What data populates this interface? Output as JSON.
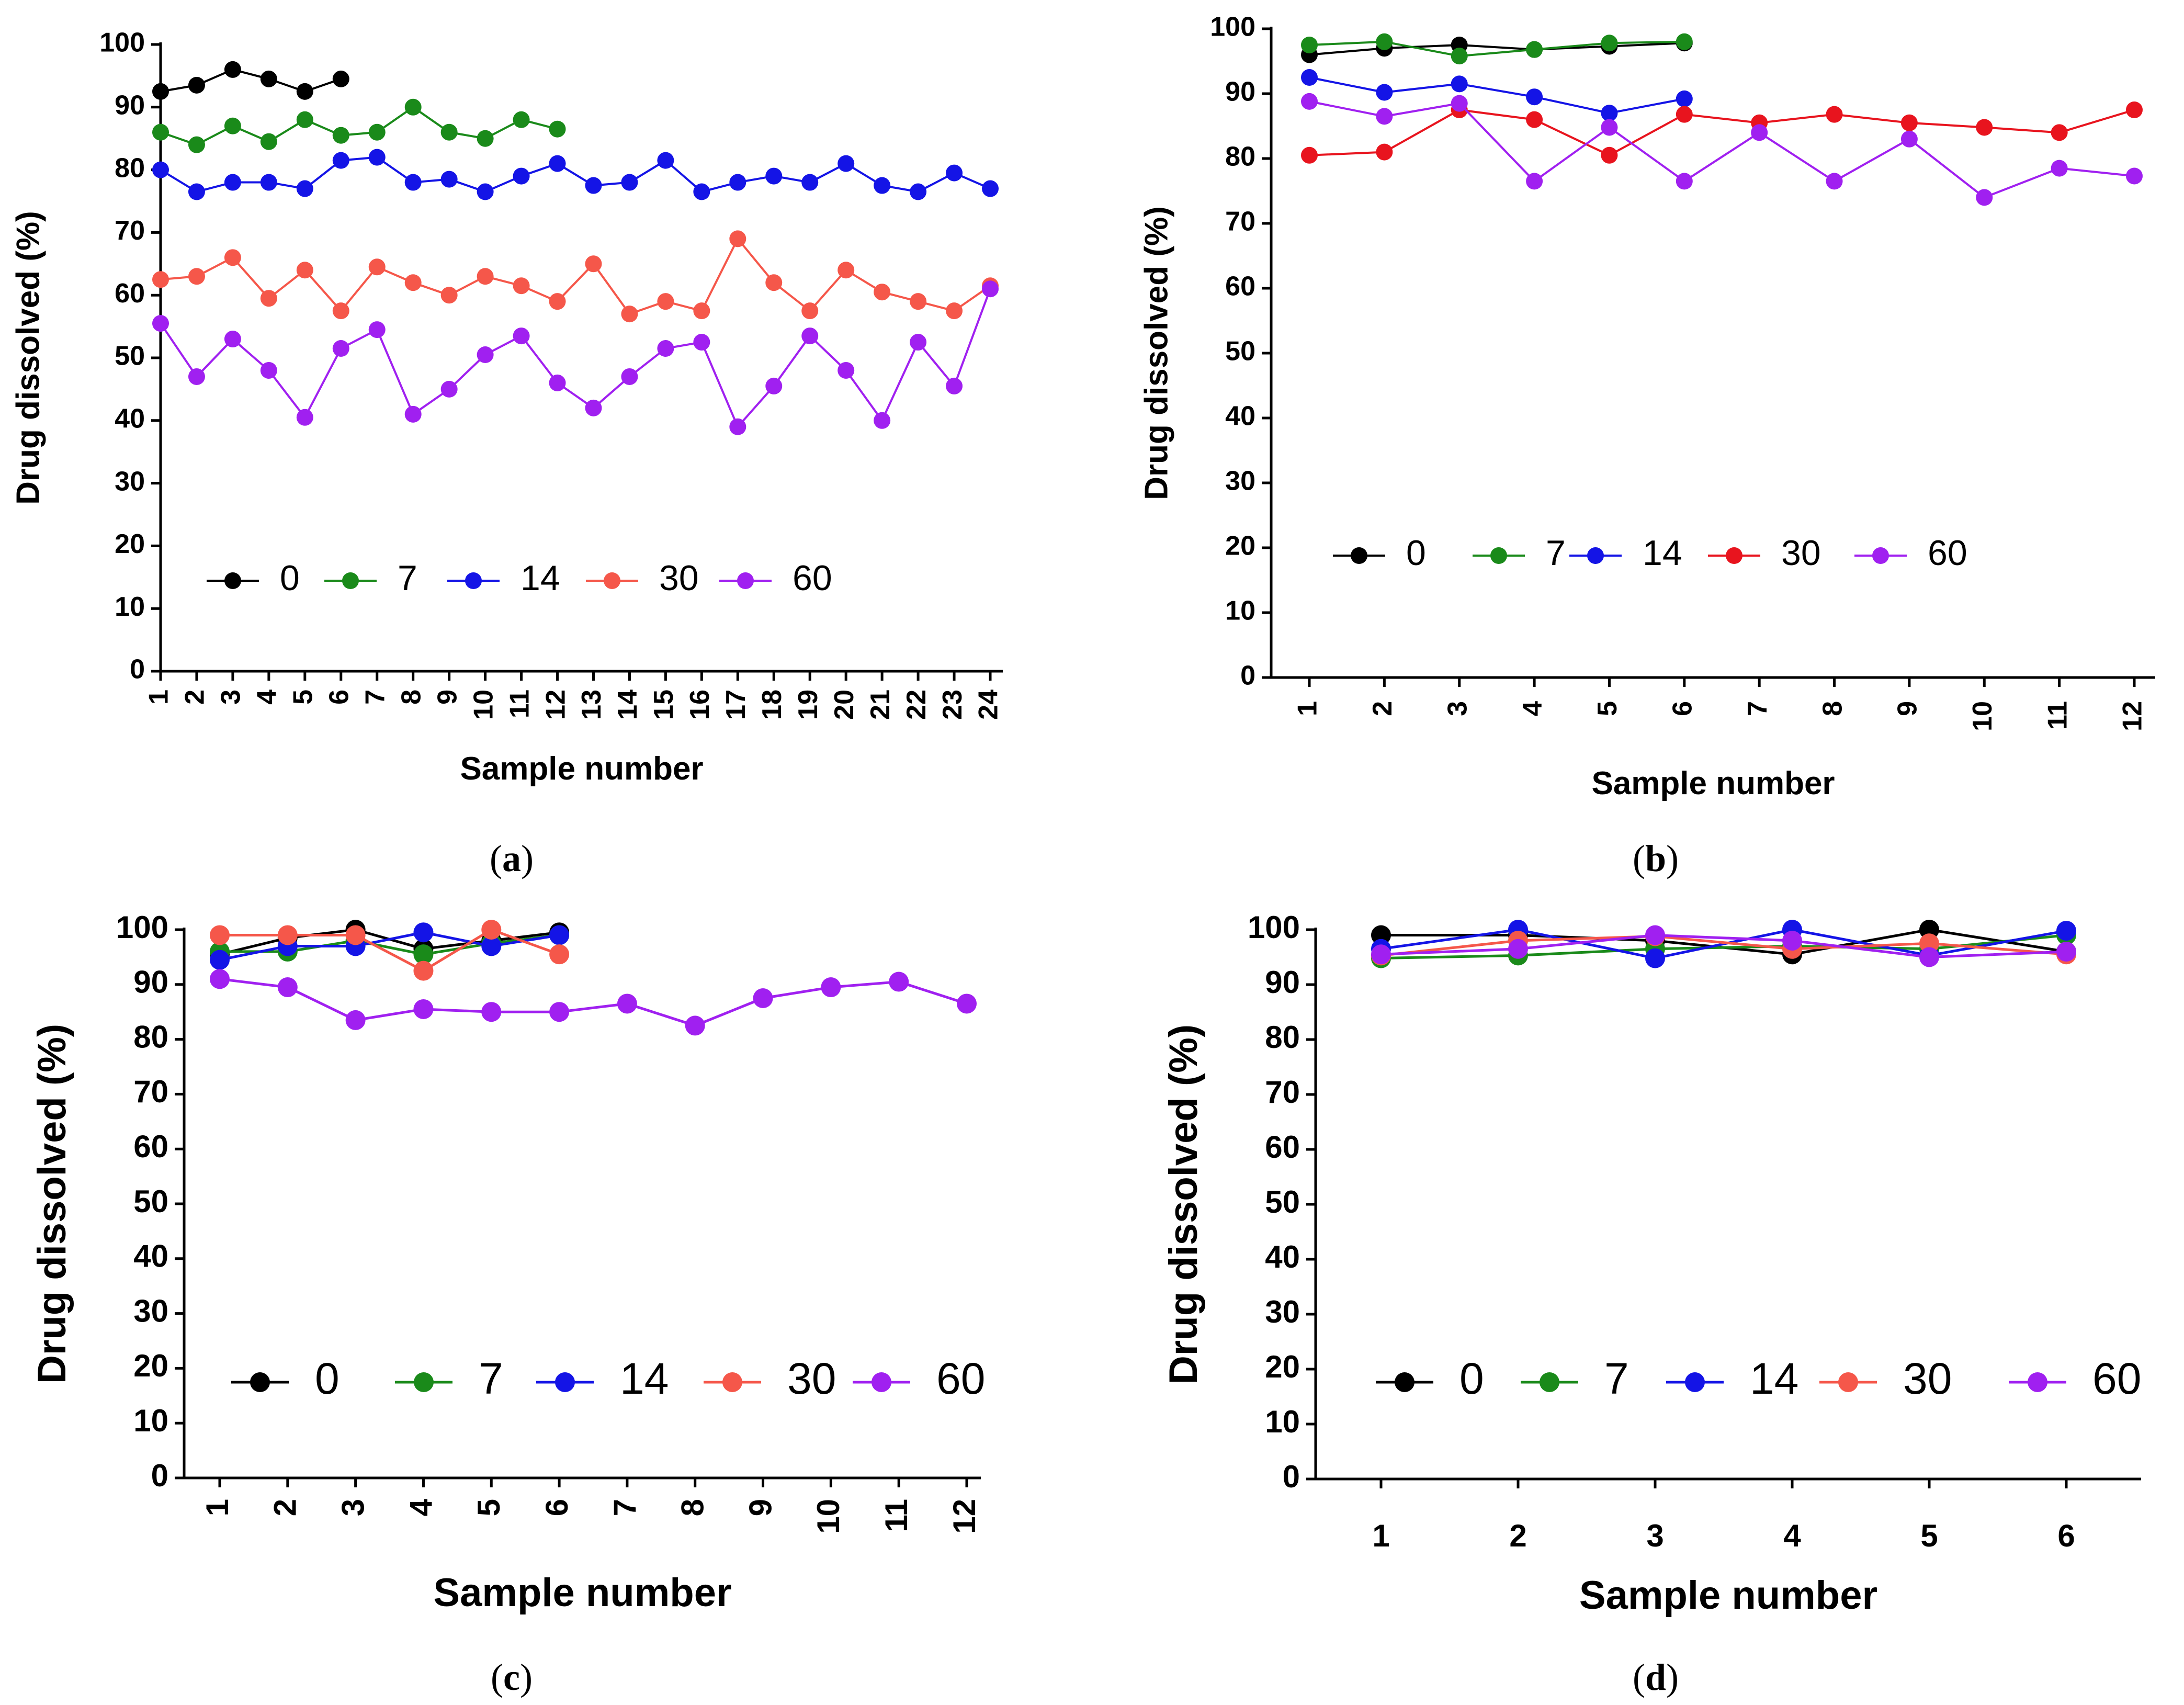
{
  "chart_data": [
    {
      "type": "line",
      "panel_label": {
        "open": "(",
        "letter": "a",
        "close": ")"
      },
      "title": "",
      "xlabel": "Sample number",
      "ylabel": "Drug dissolved (%)",
      "ylim": [
        0,
        100
      ],
      "ytick_step": 10,
      "x_tick_labels": [
        "1",
        "2",
        "3",
        "4",
        "5",
        "6",
        "7",
        "8",
        "9",
        "10",
        "11",
        "12",
        "13",
        "14",
        "15",
        "16",
        "17",
        "18",
        "19",
        "20",
        "21",
        "22",
        "23",
        "24"
      ],
      "x_tick_rotation": -90,
      "grid": false,
      "legend": "inside-bottom-left",
      "series": [
        {
          "name": "0",
          "color": "#000000",
          "x": [
            1,
            2,
            3,
            4,
            5,
            6
          ],
          "values": [
            92.5,
            93.5,
            96,
            94.5,
            92.5,
            94.5
          ]
        },
        {
          "name": "7",
          "color": "#1a8a1a",
          "x": [
            1,
            2,
            3,
            4,
            5,
            6,
            7,
            8,
            9,
            10,
            11,
            12
          ],
          "values": [
            86,
            84,
            87,
            84.5,
            88,
            85.5,
            86,
            90,
            86,
            85,
            88,
            86.5
          ]
        },
        {
          "name": "14",
          "color": "#1414e6",
          "x": [
            1,
            2,
            3,
            4,
            5,
            6,
            7,
            8,
            9,
            10,
            11,
            12,
            13,
            14,
            15,
            16,
            17,
            18,
            19,
            20,
            21,
            22,
            23,
            24
          ],
          "values": [
            80,
            76.5,
            78,
            78,
            77,
            81.5,
            82,
            78,
            78.5,
            76.5,
            79,
            81,
            77.5,
            78,
            81.5,
            76.5,
            78,
            79,
            78,
            81,
            77.5,
            76.5,
            79.5,
            77
          ]
        },
        {
          "name": "30",
          "color": "#f5574a",
          "x": [
            1,
            2,
            3,
            4,
            5,
            6,
            7,
            8,
            9,
            10,
            11,
            12,
            13,
            14,
            15,
            16,
            17,
            18,
            19,
            20,
            21,
            22,
            23,
            24
          ],
          "values": [
            62.5,
            63,
            66,
            59.5,
            64,
            57.5,
            64.5,
            62,
            60,
            63,
            61.5,
            59,
            65,
            57,
            59,
            57.5,
            69,
            62,
            57.5,
            64,
            60.5,
            59,
            57.5,
            61.5
          ]
        },
        {
          "name": "60",
          "color": "#a020f0",
          "x": [
            1,
            2,
            3,
            4,
            5,
            6,
            7,
            8,
            9,
            10,
            11,
            12,
            13,
            14,
            15,
            16,
            17,
            18,
            19,
            20,
            21,
            22,
            23,
            24
          ],
          "values": [
            55.5,
            47,
            53,
            48,
            40.5,
            51.5,
            54.5,
            41,
            45,
            50.5,
            53.5,
            46,
            42,
            47,
            51.5,
            52.5,
            39,
            45.5,
            53.5,
            48,
            40,
            52.5,
            45.5,
            61
          ]
        }
      ]
    },
    {
      "type": "line",
      "panel_label": {
        "open": "(",
        "letter": "b",
        "close": ")"
      },
      "title": "",
      "xlabel": "Sample number",
      "ylabel": "Drug dissolved (%)",
      "ylim": [
        0,
        100
      ],
      "ytick_step": 10,
      "x_tick_labels": [
        "1",
        "2",
        "3",
        "4",
        "5",
        "6",
        "7",
        "8",
        "9",
        "10",
        "11",
        "12"
      ],
      "x_tick_rotation": -90,
      "grid": false,
      "legend": "inside-bottom-left",
      "series": [
        {
          "name": "0",
          "color": "#000000",
          "x": [
            1,
            2,
            3,
            4,
            5,
            6
          ],
          "values": [
            96,
            97,
            97.5,
            96.8,
            97.3,
            97.8
          ]
        },
        {
          "name": "7",
          "color": "#1a8a1a",
          "x": [
            1,
            2,
            3,
            4,
            5,
            6
          ],
          "values": [
            97.5,
            98,
            95.8,
            96.8,
            97.8,
            98
          ]
        },
        {
          "name": "14",
          "color": "#1414e6",
          "x": [
            1,
            2,
            3,
            4,
            5,
            6
          ],
          "values": [
            92.5,
            90.2,
            91.5,
            89.5,
            87,
            89.2
          ]
        },
        {
          "name": "30",
          "color": "#e8141e",
          "x": [
            1,
            2,
            3,
            4,
            5,
            6,
            7,
            8,
            9,
            10,
            11,
            12
          ],
          "values": [
            80.5,
            81,
            87.5,
            86,
            80.5,
            86.8,
            85.5,
            86.8,
            85.5,
            84.8,
            84,
            87.5
          ]
        },
        {
          "name": "60",
          "color": "#a020f0",
          "x": [
            1,
            2,
            3,
            4,
            5,
            6,
            7,
            8,
            9,
            10,
            11,
            12
          ],
          "values": [
            88.8,
            86.5,
            88.5,
            76.5,
            84.8,
            76.5,
            84,
            76.5,
            83,
            74,
            78.5,
            77.3
          ]
        }
      ]
    },
    {
      "type": "line",
      "panel_label": {
        "open": "(",
        "letter": "c",
        "close": ")"
      },
      "title": "",
      "xlabel": "Sample number",
      "ylabel": "Drug dissolved (%)",
      "ylim": [
        0,
        100
      ],
      "ytick_step": 10,
      "x_tick_labels": [
        "1",
        "2",
        "3",
        "4",
        "5",
        "6",
        "7",
        "8",
        "9",
        "10",
        "11",
        "12"
      ],
      "x_tick_rotation": -90,
      "grid": false,
      "legend": "inside-bottom-left",
      "series": [
        {
          "name": "0",
          "color": "#000000",
          "x": [
            1,
            2,
            3,
            4,
            5,
            6
          ],
          "values": [
            95.5,
            98.5,
            100,
            96.5,
            98,
            99.5
          ]
        },
        {
          "name": "7",
          "color": "#1a8a1a",
          "x": [
            1,
            2,
            3,
            4,
            5,
            6
          ],
          "values": [
            96,
            96,
            98,
            95.5,
            97.5,
            99
          ]
        },
        {
          "name": "14",
          "color": "#1414e6",
          "x": [
            1,
            2,
            3,
            4,
            5,
            6
          ],
          "values": [
            94.5,
            97,
            97,
            99.5,
            97,
            99
          ]
        },
        {
          "name": "30",
          "color": "#f5574a",
          "x": [
            1,
            2,
            3,
            4,
            5,
            6
          ],
          "values": [
            99,
            99,
            99,
            92.5,
            100,
            95.5
          ]
        },
        {
          "name": "60",
          "color": "#a020f0",
          "x": [
            1,
            2,
            3,
            4,
            5,
            6,
            7,
            8,
            9,
            10,
            11,
            12
          ],
          "values": [
            91,
            89.5,
            83.5,
            85.5,
            85,
            85,
            86.5,
            82.5,
            87.5,
            89.5,
            90.5,
            86.5
          ]
        }
      ]
    },
    {
      "type": "line",
      "panel_label": {
        "open": "(",
        "letter": "d",
        "close": ")"
      },
      "title": "",
      "xlabel": "Sample number",
      "ylabel": "Drug dissolved (%)",
      "ylim": [
        0,
        100
      ],
      "ytick_step": 10,
      "x_tick_labels": [
        "1",
        "2",
        "3",
        "4",
        "5",
        "6"
      ],
      "x_tick_rotation": 0,
      "grid": false,
      "legend": "inside-bottom-left",
      "series": [
        {
          "name": "0",
          "color": "#000000",
          "x": [
            1,
            2,
            3,
            4,
            5,
            6
          ],
          "values": [
            99,
            99,
            98,
            95.5,
            100,
            96
          ]
        },
        {
          "name": "7",
          "color": "#1a8a1a",
          "x": [
            1,
            2,
            3,
            4,
            5,
            6
          ],
          "values": [
            94.8,
            95.3,
            96.5,
            97,
            96.5,
            99
          ]
        },
        {
          "name": "14",
          "color": "#1414e6",
          "x": [
            1,
            2,
            3,
            4,
            5,
            6
          ],
          "values": [
            96.5,
            100,
            94.8,
            100,
            95.3,
            99.8
          ]
        },
        {
          "name": "30",
          "color": "#f5574a",
          "x": [
            1,
            2,
            3,
            4,
            5,
            6
          ],
          "values": [
            95.3,
            98,
            98.8,
            96.5,
            97.5,
            95.5
          ]
        },
        {
          "name": "60",
          "color": "#a020f0",
          "x": [
            1,
            2,
            3,
            4,
            5,
            6
          ],
          "values": [
            95.5,
            96.5,
            99,
            98,
            95,
            96
          ]
        }
      ]
    }
  ]
}
